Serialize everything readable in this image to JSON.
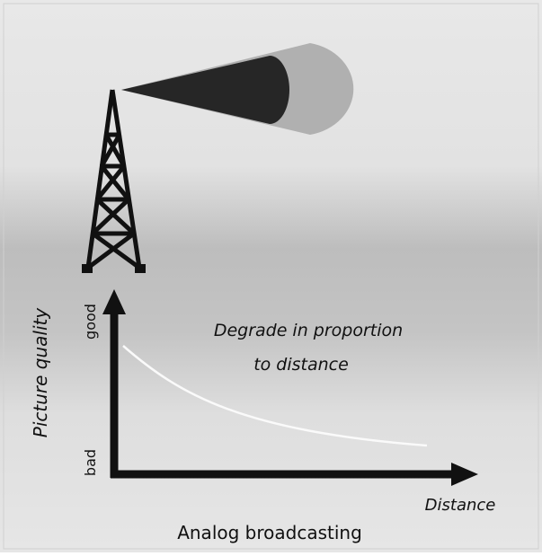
{
  "annotation": [
    "Degrade in proportion",
    "to distance"
  ],
  "y_axis": {
    "label": "Picture quality",
    "high": "good",
    "low": "bad"
  },
  "x_axis": {
    "label": "Distance"
  },
  "caption": "Analog broadcasting"
}
